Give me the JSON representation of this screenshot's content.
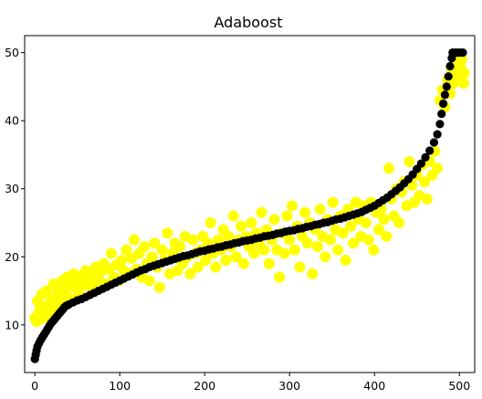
{
  "chart_data": {
    "type": "scatter",
    "title": "Adaboost",
    "xlabel": "",
    "ylabel": "",
    "xlim": [
      -12,
      518
    ],
    "ylim": [
      3,
      52.5
    ],
    "xticks": [
      0,
      100,
      200,
      300,
      400,
      500
    ],
    "yticks": [
      10,
      20,
      30,
      40,
      50
    ],
    "grid": false,
    "legend": "none",
    "series": [
      {
        "color": "#ffff00",
        "marker_radius": 6,
        "points": [
          [
            0,
            11
          ],
          [
            2,
            10.5
          ],
          [
            3,
            13.5
          ],
          [
            5,
            12
          ],
          [
            6,
            10.8
          ],
          [
            8,
            14.5
          ],
          [
            10,
            12.6
          ],
          [
            12,
            11.2
          ],
          [
            14,
            15
          ],
          [
            16,
            13
          ],
          [
            18,
            12
          ],
          [
            20,
            14
          ],
          [
            22,
            16
          ],
          [
            24,
            13.5
          ],
          [
            26,
            12.8
          ],
          [
            28,
            15.2
          ],
          [
            30,
            14.2
          ],
          [
            32,
            16.5
          ],
          [
            34,
            13.2
          ],
          [
            36,
            15
          ],
          [
            38,
            17
          ],
          [
            40,
            14
          ],
          [
            42,
            16
          ],
          [
            44,
            13.8
          ],
          [
            46,
            17.5
          ],
          [
            48,
            15.5
          ],
          [
            50,
            16.8
          ],
          [
            52,
            14.5
          ],
          [
            55,
            17.2
          ],
          [
            58,
            15.8
          ],
          [
            60,
            18
          ],
          [
            63,
            16.2
          ],
          [
            66,
            17.5
          ],
          [
            69,
            15.2
          ],
          [
            72,
            18.5
          ],
          [
            75,
            16.5
          ],
          [
            78,
            17.8
          ],
          [
            81,
            19
          ],
          [
            84,
            16
          ],
          [
            87,
            18.2
          ],
          [
            90,
            20.5
          ],
          [
            93,
            17
          ],
          [
            96,
            18.8
          ],
          [
            99,
            16.5
          ],
          [
            102,
            19.5
          ],
          [
            105,
            18
          ],
          [
            108,
            21
          ],
          [
            111,
            17.5
          ],
          [
            114,
            19.8
          ],
          [
            117,
            22.5
          ],
          [
            120,
            18.2
          ],
          [
            123,
            20.5
          ],
          [
            126,
            17
          ],
          [
            129,
            21.5
          ],
          [
            132,
            19
          ],
          [
            135,
            16.5
          ],
          [
            138,
            20
          ],
          [
            141,
            22
          ],
          [
            144,
            18.5
          ],
          [
            147,
            15.5
          ],
          [
            150,
            21
          ],
          [
            153,
            19.5
          ],
          [
            156,
            23.5
          ],
          [
            159,
            17.5
          ],
          [
            162,
            20.5
          ],
          [
            165,
            22
          ],
          [
            168,
            18
          ],
          [
            171,
            21.5
          ],
          [
            174,
            19
          ],
          [
            177,
            23
          ],
          [
            180,
            20
          ],
          [
            183,
            17.5
          ],
          [
            186,
            22.5
          ],
          [
            189,
            20.5
          ],
          [
            192,
            18.5
          ],
          [
            195,
            21
          ],
          [
            198,
            23
          ],
          [
            201,
            19.5
          ],
          [
            204,
            22
          ],
          [
            207,
            25
          ],
          [
            210,
            20.5
          ],
          [
            213,
            18.5
          ],
          [
            216,
            22.5
          ],
          [
            219,
            21
          ],
          [
            222,
            24
          ],
          [
            225,
            19.5
          ],
          [
            228,
            23
          ],
          [
            231,
            21.5
          ],
          [
            234,
            26
          ],
          [
            237,
            20
          ],
          [
            240,
            22.5
          ],
          [
            243,
            24.5
          ],
          [
            246,
            19
          ],
          [
            249,
            23
          ],
          [
            252,
            21.5
          ],
          [
            255,
            25
          ],
          [
            258,
            20.5
          ],
          [
            261,
            23.5
          ],
          [
            264,
            22
          ],
          [
            267,
            26.5
          ],
          [
            270,
            21
          ],
          [
            273,
            24
          ],
          [
            276,
            19
          ],
          [
            279,
            22.5
          ],
          [
            282,
            25.5
          ],
          [
            285,
            21
          ],
          [
            288,
            17
          ],
          [
            291,
            23.5
          ],
          [
            294,
            20.5
          ],
          [
            297,
            26
          ],
          [
            300,
            22.5
          ],
          [
            303,
            27.5
          ],
          [
            306,
            21
          ],
          [
            309,
            24.5
          ],
          [
            312,
            18.5
          ],
          [
            315,
            23
          ],
          [
            318,
            26.5
          ],
          [
            321,
            22
          ],
          [
            324,
            25
          ],
          [
            327,
            17.5
          ],
          [
            330,
            24
          ],
          [
            333,
            21.5
          ],
          [
            336,
            27
          ],
          [
            339,
            23
          ],
          [
            342,
            20
          ],
          [
            345,
            25.5
          ],
          [
            348,
            22.5
          ],
          [
            351,
            28
          ],
          [
            354,
            24
          ],
          [
            357,
            21
          ],
          [
            360,
            26
          ],
          [
            363,
            23.5
          ],
          [
            366,
            19.5
          ],
          [
            369,
            27
          ],
          [
            372,
            24.5
          ],
          [
            375,
            22
          ],
          [
            378,
            28
          ],
          [
            381,
            25.5
          ],
          [
            384,
            23
          ],
          [
            387,
            27.5
          ],
          [
            390,
            25
          ],
          [
            393,
            22.5
          ],
          [
            396,
            28
          ],
          [
            399,
            21
          ],
          [
            402,
            26.5
          ],
          [
            405,
            24
          ],
          [
            408,
            27
          ],
          [
            411,
            25.5
          ],
          [
            414,
            23
          ],
          [
            417,
            33
          ],
          [
            420,
            28.5
          ],
          [
            423,
            26
          ],
          [
            426,
            30
          ],
          [
            429,
            25
          ],
          [
            432,
            29.5
          ],
          [
            435,
            31
          ],
          [
            438,
            27.5
          ],
          [
            441,
            34
          ],
          [
            444,
            30.5
          ],
          [
            447,
            28
          ],
          [
            450,
            32
          ],
          [
            453,
            29
          ],
          [
            456,
            33.5
          ],
          [
            459,
            31
          ],
          [
            462,
            28.5
          ],
          [
            465,
            34
          ],
          [
            468,
            32
          ],
          [
            471,
            35.5
          ],
          [
            474,
            33
          ],
          [
            477,
            43
          ],
          [
            480,
            44.5
          ],
          [
            483,
            42
          ],
          [
            486,
            46
          ],
          [
            489,
            44
          ],
          [
            491,
            47.5
          ],
          [
            493,
            45.5
          ],
          [
            495,
            47
          ],
          [
            497,
            49
          ],
          [
            499,
            46.5
          ],
          [
            501,
            48
          ],
          [
            503,
            49
          ],
          [
            505,
            45.5
          ],
          [
            506,
            47
          ]
        ]
      },
      {
        "color": "#000000",
        "marker_radius": 4.6,
        "points": [
          [
            0,
            5
          ],
          [
            1,
            5.6
          ],
          [
            2,
            6.2
          ],
          [
            3,
            6.8
          ],
          [
            5,
            7.3
          ],
          [
            7,
            7.8
          ],
          [
            9,
            8.2
          ],
          [
            11,
            8.6
          ],
          [
            13,
            9
          ],
          [
            15,
            9.4
          ],
          [
            17,
            9.8
          ],
          [
            19,
            10.2
          ],
          [
            21,
            10.5
          ],
          [
            23,
            10.8
          ],
          [
            25,
            11.1
          ],
          [
            27,
            11.4
          ],
          [
            29,
            11.7
          ],
          [
            31,
            12
          ],
          [
            33,
            12.3
          ],
          [
            35,
            12.6
          ],
          [
            37,
            12.8
          ],
          [
            40,
            13
          ],
          [
            45,
            13.3
          ],
          [
            50,
            13.6
          ],
          [
            55,
            13.8
          ],
          [
            60,
            14.1
          ],
          [
            65,
            14.4
          ],
          [
            70,
            14.7
          ],
          [
            75,
            15
          ],
          [
            80,
            15.3
          ],
          [
            85,
            15.6
          ],
          [
            90,
            15.9
          ],
          [
            95,
            16.2
          ],
          [
            100,
            16.5
          ],
          [
            105,
            16.8
          ],
          [
            110,
            17.1
          ],
          [
            115,
            17.4
          ],
          [
            120,
            17.7
          ],
          [
            125,
            18
          ],
          [
            130,
            18.2
          ],
          [
            135,
            18.5
          ],
          [
            140,
            18.7
          ],
          [
            145,
            18.9
          ],
          [
            150,
            19.1
          ],
          [
            155,
            19.3
          ],
          [
            160,
            19.5
          ],
          [
            165,
            19.7
          ],
          [
            170,
            19.9
          ],
          [
            175,
            20.1
          ],
          [
            180,
            20.2
          ],
          [
            185,
            20.4
          ],
          [
            190,
            20.6
          ],
          [
            195,
            20.8
          ],
          [
            200,
            20.9
          ],
          [
            205,
            21.1
          ],
          [
            210,
            21.2
          ],
          [
            215,
            21.4
          ],
          [
            220,
            21.5
          ],
          [
            225,
            21.7
          ],
          [
            230,
            21.8
          ],
          [
            235,
            22
          ],
          [
            240,
            22.1
          ],
          [
            245,
            22.3
          ],
          [
            250,
            22.4
          ],
          [
            255,
            22.5
          ],
          [
            260,
            22.7
          ],
          [
            265,
            22.8
          ],
          [
            270,
            23
          ],
          [
            275,
            23.1
          ],
          [
            280,
            23.2
          ],
          [
            285,
            23.4
          ],
          [
            290,
            23.5
          ],
          [
            295,
            23.7
          ],
          [
            300,
            23.8
          ],
          [
            305,
            23.9
          ],
          [
            310,
            24.1
          ],
          [
            315,
            24.2
          ],
          [
            320,
            24.4
          ],
          [
            325,
            24.5
          ],
          [
            330,
            24.7
          ],
          [
            335,
            24.8
          ],
          [
            340,
            25
          ],
          [
            345,
            25.1
          ],
          [
            350,
            25.3
          ],
          [
            355,
            25.5
          ],
          [
            360,
            25.6
          ],
          [
            365,
            25.8
          ],
          [
            370,
            26
          ],
          [
            375,
            26.2
          ],
          [
            380,
            26.4
          ],
          [
            385,
            26.6
          ],
          [
            390,
            26.9
          ],
          [
            395,
            27.2
          ],
          [
            400,
            27.5
          ],
          [
            405,
            27.9
          ],
          [
            410,
            28.3
          ],
          [
            415,
            28.7
          ],
          [
            420,
            29.2
          ],
          [
            425,
            29.7
          ],
          [
            430,
            30.2
          ],
          [
            435,
            30.8
          ],
          [
            440,
            31.4
          ],
          [
            445,
            32.1
          ],
          [
            450,
            32.9
          ],
          [
            455,
            33.7
          ],
          [
            460,
            34.6
          ],
          [
            465,
            35.6
          ],
          [
            470,
            36.8
          ],
          [
            474,
            38
          ],
          [
            477,
            39.5
          ],
          [
            479,
            41
          ],
          [
            481,
            42.5
          ],
          [
            483,
            43.8
          ],
          [
            485,
            45
          ],
          [
            487,
            46.5
          ],
          [
            489,
            48
          ],
          [
            491,
            49.2
          ],
          [
            492,
            50
          ],
          [
            495,
            50
          ],
          [
            498,
            50
          ],
          [
            501,
            50
          ],
          [
            504,
            50
          ]
        ]
      }
    ]
  }
}
